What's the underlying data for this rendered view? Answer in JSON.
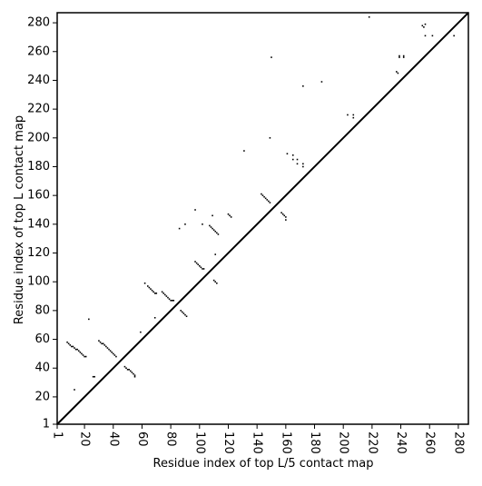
{
  "chart_data": {
    "type": "scatter",
    "x_label": "Residue index of top L/5 contact map",
    "y_label": "Residue index of top L contact map",
    "color": "#000000",
    "xlim": [
      1,
      287
    ],
    "ylim": [
      1,
      287
    ],
    "xticks": [
      1,
      20,
      40,
      60,
      80,
      100,
      120,
      140,
      160,
      180,
      200,
      220,
      240,
      260,
      280
    ],
    "yticks": [
      1,
      20,
      40,
      60,
      80,
      100,
      120,
      140,
      160,
      180,
      200,
      220,
      240,
      260,
      280
    ],
    "x": [
      8,
      9,
      10,
      11,
      12,
      13,
      14,
      15,
      16,
      17,
      18,
      19,
      20,
      21,
      13,
      23,
      26,
      27,
      30,
      31,
      32,
      33,
      34,
      35,
      36,
      37,
      38,
      39,
      40,
      41,
      42,
      48,
      49,
      50,
      51,
      52,
      53,
      54,
      55,
      55,
      59,
      62,
      64,
      65,
      66,
      67,
      68,
      69,
      70,
      69,
      74,
      75,
      76,
      77,
      78,
      79,
      80,
      81,
      82,
      86,
      90,
      87,
      88,
      89,
      90,
      91,
      97,
      97,
      98,
      99,
      100,
      101,
      102,
      103,
      102,
      107,
      108,
      109,
      110,
      111,
      112,
      113,
      109,
      110,
      111,
      112,
      111,
      120,
      121,
      122,
      131,
      143,
      144,
      145,
      146,
      147,
      148,
      149,
      149,
      150,
      157,
      158,
      159,
      160,
      160,
      161,
      165,
      165,
      168,
      168,
      172,
      172,
      172,
      185,
      203,
      207,
      207,
      218,
      237,
      238,
      239,
      242,
      239,
      242,
      255,
      256,
      257,
      257,
      262,
      277
    ],
    "y": [
      58,
      57,
      56,
      55,
      55,
      54,
      53,
      53,
      52,
      51,
      50,
      49,
      48,
      48,
      25,
      74,
      34,
      34,
      59,
      58,
      57,
      57,
      56,
      55,
      54,
      53,
      52,
      51,
      50,
      49,
      48,
      41,
      40,
      39,
      39,
      38,
      37,
      36,
      35,
      34,
      65,
      99,
      97,
      96,
      95,
      94,
      93,
      92,
      92,
      75,
      93,
      92,
      91,
      90,
      89,
      88,
      87,
      87,
      87,
      137,
      140,
      80,
      79,
      78,
      77,
      76,
      150,
      114,
      113,
      112,
      111,
      110,
      109,
      109,
      140,
      139,
      138,
      137,
      136,
      135,
      134,
      133,
      146,
      101,
      100,
      99,
      119,
      147,
      146,
      145,
      191,
      161,
      160,
      159,
      158,
      157,
      156,
      155,
      200,
      256,
      148,
      147,
      146,
      145,
      143,
      189,
      188,
      185,
      185,
      182,
      182,
      180,
      236,
      239,
      216,
      216,
      214,
      284,
      246,
      245,
      257,
      257,
      256,
      256,
      278,
      277,
      279,
      271,
      271,
      271
    ]
  }
}
